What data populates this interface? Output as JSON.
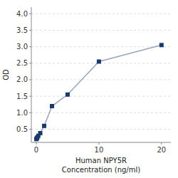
{
  "chart_data": {
    "type": "line",
    "x": [
      0,
      0.078,
      0.156,
      0.313,
      0.625,
      1.25,
      2.5,
      5,
      10,
      20
    ],
    "series": [
      {
        "color": "#1a3a6b",
        "marker": "square",
        "values": [
          0.2,
          0.22,
          0.25,
          0.3,
          0.38,
          0.6,
          1.2,
          1.55,
          2.55,
          3.05
        ]
      }
    ],
    "xlabel": [
      "Human NPY5R",
      "Concentration (ng/ml)"
    ],
    "ylabel": "OD",
    "xlim": [
      -0.8,
      21.5
    ],
    "ylim": [
      0.1,
      4.2
    ],
    "xticks": [
      0,
      10,
      20
    ],
    "yticks": [
      0.5,
      {
        "value": 1,
        "label": "1.0"
      },
      1.5,
      {
        "value": 2,
        "label": "2.0"
      },
      2.5,
      {
        "value": 3,
        "label": "3.0"
      },
      3.5,
      {
        "value": 4,
        "label": "4.0"
      }
    ],
    "grid": true
  }
}
